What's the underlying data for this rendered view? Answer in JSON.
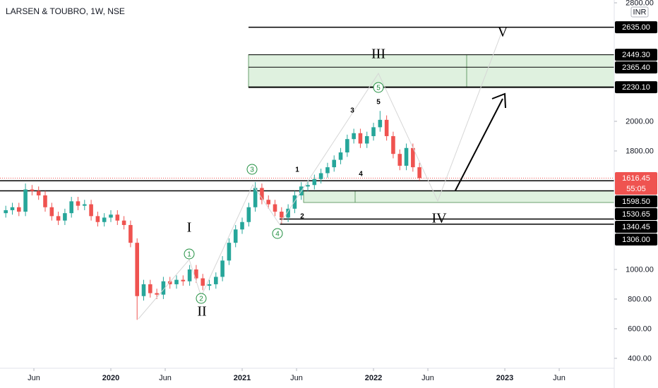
{
  "chart_data": {
    "type": "candlestick",
    "title": "LARSEN & TOUBRO, 1W, NSE",
    "currency": "INR",
    "x": [
      2019.2,
      2019.25,
      2019.3,
      2019.35,
      2019.4,
      2019.45,
      2019.5,
      2019.55,
      2019.6,
      2019.65,
      2019.7,
      2019.75,
      2019.8,
      2019.85,
      2019.9,
      2019.95,
      2020.0,
      2020.05,
      2020.1,
      2020.15,
      2020.2,
      2020.25,
      2020.3,
      2020.35,
      2020.4,
      2020.45,
      2020.5,
      2020.55,
      2020.6,
      2020.65,
      2020.7,
      2020.75,
      2020.8,
      2020.85,
      2020.9,
      2020.95,
      2021.0,
      2021.05,
      2021.1,
      2021.15,
      2021.2,
      2021.25,
      2021.3,
      2021.35,
      2021.4,
      2021.45,
      2021.5,
      2021.55,
      2021.6,
      2021.65,
      2021.7,
      2021.75,
      2021.8,
      2021.85,
      2021.9,
      2021.95,
      2022.0,
      2022.05,
      2022.1,
      2022.15,
      2022.2,
      2022.25,
      2022.3,
      2022.35
    ],
    "open": [
      1380,
      1400,
      1420,
      1390,
      1540,
      1530,
      1500,
      1420,
      1360,
      1330,
      1380,
      1460,
      1430,
      1440,
      1360,
      1320,
      1350,
      1370,
      1330,
      1300,
      1180,
      820,
      900,
      840,
      830,
      920,
      900,
      930,
      920,
      1000,
      940,
      890,
      900,
      950,
      1060,
      1180,
      1270,
      1320,
      1420,
      1550,
      1470,
      1440,
      1390,
      1350,
      1410,
      1500,
      1560,
      1570,
      1610,
      1650,
      1690,
      1740,
      1790,
      1880,
      1920,
      1850,
      1900,
      1960,
      2010,
      1900,
      1780,
      1700,
      1820,
      1690
    ],
    "high": [
      1430,
      1450,
      1450,
      1580,
      1570,
      1560,
      1530,
      1450,
      1390,
      1410,
      1490,
      1490,
      1470,
      1470,
      1390,
      1380,
      1400,
      1400,
      1360,
      1330,
      1210,
      930,
      930,
      870,
      950,
      950,
      960,
      960,
      1030,
      1030,
      970,
      930,
      980,
      1090,
      1210,
      1300,
      1350,
      1450,
      1590,
      1580,
      1500,
      1470,
      1420,
      1440,
      1530,
      1590,
      1600,
      1640,
      1680,
      1720,
      1770,
      1820,
      1910,
      1950,
      1950,
      1930,
      1990,
      2070,
      2040,
      1930,
      1810,
      1850,
      1850,
      1720
    ],
    "low": [
      1350,
      1370,
      1360,
      1360,
      1500,
      1470,
      1390,
      1330,
      1300,
      1300,
      1350,
      1400,
      1400,
      1330,
      1290,
      1290,
      1320,
      1300,
      1270,
      1150,
      660,
      790,
      810,
      800,
      800,
      870,
      870,
      890,
      890,
      910,
      860,
      860,
      870,
      920,
      1030,
      1150,
      1240,
      1290,
      1390,
      1440,
      1410,
      1360,
      1310,
      1320,
      1380,
      1470,
      1530,
      1540,
      1580,
      1620,
      1660,
      1710,
      1760,
      1850,
      1820,
      1820,
      1870,
      1930,
      1870,
      1750,
      1670,
      1670,
      1660,
      1600
    ],
    "close": [
      1400,
      1420,
      1390,
      1540,
      1530,
      1500,
      1420,
      1360,
      1330,
      1380,
      1460,
      1430,
      1440,
      1360,
      1320,
      1350,
      1370,
      1330,
      1300,
      1180,
      820,
      900,
      840,
      830,
      920,
      900,
      930,
      920,
      1000,
      940,
      890,
      900,
      950,
      1060,
      1180,
      1270,
      1320,
      1420,
      1550,
      1470,
      1440,
      1390,
      1350,
      1410,
      1500,
      1560,
      1570,
      1610,
      1650,
      1690,
      1740,
      1790,
      1880,
      1920,
      1850,
      1900,
      1960,
      2010,
      1900,
      1780,
      1700,
      1820,
      1690,
      1616.45
    ],
    "up_color": "#26a69a",
    "down_color": "#ef5350",
    "xlim": [
      2019.156,
      2023.833
    ],
    "xticks": [
      {
        "value": 2019.414,
        "label": "Jun"
      },
      {
        "value": 2020,
        "label": "2020"
      },
      {
        "value": 2020.414,
        "label": "Jun"
      },
      {
        "value": 2021,
        "label": "2021"
      },
      {
        "value": 2021.414,
        "label": "Jun"
      },
      {
        "value": 2022,
        "label": "2022"
      },
      {
        "value": 2022.414,
        "label": "Jun"
      },
      {
        "value": 2023,
        "label": "2023"
      },
      {
        "value": 2023.414,
        "label": "Jun"
      }
    ],
    "ylim": [
      333,
      2819
    ],
    "yticks": [
      {
        "value": 2800,
        "label": "2800.00"
      },
      {
        "value": 2000,
        "label": "2000.00"
      },
      {
        "value": 1800,
        "label": "1800.00"
      },
      {
        "value": 1000,
        "label": "1000.00"
      },
      {
        "value": 800,
        "label": "800.00"
      },
      {
        "value": 600,
        "label": "600.00"
      },
      {
        "value": 400,
        "label": "400.00"
      }
    ],
    "grid": false,
    "last_price": {
      "value": 1616.45,
      "label": "1616.45"
    },
    "countdown": "55:05",
    "levels": [
      {
        "value": 2635,
        "label": "2635.00"
      },
      {
        "value": 2449.3,
        "label": "2449.30"
      },
      {
        "value": 2365.4,
        "label": "2365.40"
      },
      {
        "value": 2230.1,
        "label": "2230.10"
      },
      {
        "value": 1598.5,
        "label": "1598.50"
      },
      {
        "value": 1530.65,
        "label": "1530.65"
      },
      {
        "value": 1340.45,
        "label": "1340.45"
      },
      {
        "value": 1306,
        "label": "1306.00"
      }
    ],
    "zones": [
      {
        "top": 2449.3,
        "bottom": 2230.1
      },
      {
        "top": 1530.65,
        "bottom": 1452
      }
    ],
    "wave_labels": [
      "I",
      "II",
      "III",
      "IV",
      "V"
    ],
    "circled_waves": [
      "1",
      "2",
      "3",
      "4",
      "5"
    ],
    "sub_waves": [
      "1",
      "2",
      "3",
      "4",
      "5"
    ]
  }
}
